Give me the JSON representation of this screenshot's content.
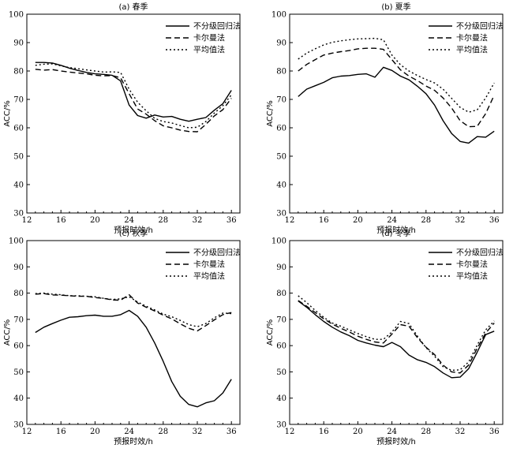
{
  "chart_data": [
    {
      "type": "line",
      "title": "(a) 春季",
      "xlabel": "预报时效/h",
      "ylabel": "ACC/%",
      "xlim": [
        12,
        37
      ],
      "ylim": [
        30,
        100
      ],
      "xticks": [
        12,
        16,
        20,
        24,
        28,
        32,
        36
      ],
      "yticks": [
        30,
        40,
        50,
        60,
        70,
        80,
        90,
        100
      ],
      "legend_position": "top-right",
      "x": [
        13,
        14,
        15,
        16,
        17,
        18,
        19,
        20,
        21,
        22,
        23,
        24,
        25,
        26,
        27,
        28,
        29,
        30,
        31,
        32,
        33,
        34,
        35,
        36
      ],
      "series": [
        {
          "name": "不分级回归法",
          "style": "solid",
          "values": [
            83,
            83,
            82.8,
            82,
            81,
            80.2,
            79.5,
            79,
            78.8,
            78.5,
            76.5,
            68,
            64.3,
            63.4,
            64.5,
            63.8,
            64,
            63,
            62.3,
            63,
            63.6,
            66.2,
            68.5,
            73.2
          ]
        },
        {
          "name": "卡尔曼法",
          "style": "dashed",
          "values": [
            80.6,
            80.3,
            80.5,
            80,
            79.6,
            79.3,
            79,
            78.5,
            78.3,
            78.4,
            77.6,
            72,
            66.6,
            64.8,
            62.5,
            60.7,
            60,
            59.2,
            58.7,
            58.6,
            61.2,
            64.2,
            66.4,
            70.4
          ]
        },
        {
          "name": "平均值法",
          "style": "dotted",
          "values": [
            82,
            82.4,
            82.5,
            81.8,
            81.2,
            80.8,
            80.4,
            80,
            79.6,
            79.7,
            79.5,
            73.6,
            69,
            66,
            63.3,
            62.2,
            61.7,
            60.8,
            60,
            60.2,
            62.2,
            65.2,
            67.8,
            71.6
          ]
        }
      ]
    },
    {
      "type": "line",
      "title": "(b) 夏季",
      "xlabel": "预报时效/h",
      "ylabel": "ACC/%",
      "xlim": [
        12,
        37
      ],
      "ylim": [
        30,
        100
      ],
      "xticks": [
        12,
        16,
        20,
        24,
        28,
        32,
        36
      ],
      "yticks": [
        30,
        40,
        50,
        60,
        70,
        80,
        90,
        100
      ],
      "legend_position": "top-right",
      "x": [
        13,
        14,
        15,
        16,
        17,
        18,
        19,
        20,
        21,
        22,
        23,
        24,
        25,
        26,
        27,
        28,
        29,
        30,
        31,
        32,
        33,
        34,
        35,
        36
      ],
      "series": [
        {
          "name": "不分级回归法",
          "style": "solid",
          "values": [
            71,
            73.6,
            74.8,
            76,
            77.6,
            78.2,
            78.4,
            78.8,
            79,
            77.8,
            81.3,
            80.2,
            78.2,
            76.9,
            74.6,
            72,
            68,
            62.5,
            58,
            55.2,
            54.6,
            56.9,
            56.7,
            58.8
          ]
        },
        {
          "name": "卡尔曼法",
          "style": "dashed",
          "values": [
            80,
            82.3,
            84,
            85.6,
            86.3,
            86.8,
            87.2,
            87.8,
            88,
            88,
            87.6,
            84,
            80.4,
            78.2,
            76.6,
            74.7,
            73.2,
            70.5,
            67,
            62.5,
            60.4,
            60.5,
            65,
            71.5
          ]
        },
        {
          "name": "平均值法",
          "style": "dotted",
          "values": [
            84.2,
            86.3,
            87.8,
            89.2,
            90.1,
            90.6,
            91,
            91.3,
            91.4,
            91.5,
            91,
            85.6,
            82.2,
            80,
            78.4,
            77,
            75.8,
            73.6,
            70.4,
            67.2,
            65.5,
            66.3,
            70.5,
            75.8
          ]
        }
      ]
    },
    {
      "type": "line",
      "title": "(c) 秋季",
      "xlabel": "预报时效/h",
      "ylabel": "ACC/%",
      "xlim": [
        12,
        37
      ],
      "ylim": [
        30,
        100
      ],
      "xticks": [
        12,
        16,
        20,
        24,
        28,
        32,
        36
      ],
      "yticks": [
        30,
        40,
        50,
        60,
        70,
        80,
        90,
        100
      ],
      "legend_position": "top-right",
      "x": [
        13,
        14,
        15,
        16,
        17,
        18,
        19,
        20,
        21,
        22,
        23,
        24,
        25,
        26,
        27,
        28,
        29,
        30,
        31,
        32,
        33,
        34,
        35,
        36
      ],
      "series": [
        {
          "name": "不分级回归法",
          "style": "solid",
          "values": [
            65,
            67,
            68.4,
            69.7,
            70.8,
            71,
            71.4,
            71.6,
            71.2,
            71.2,
            71.8,
            73.4,
            71.2,
            67,
            61,
            54,
            46.3,
            40.7,
            37.6,
            36.7,
            38.2,
            39,
            42,
            47.2
          ]
        },
        {
          "name": "卡尔曼法",
          "style": "dashed",
          "values": [
            79.6,
            79.8,
            79.3,
            79.2,
            79,
            78.8,
            78.8,
            78.3,
            78,
            77.4,
            77.3,
            79.4,
            76.2,
            74.6,
            73.2,
            71.6,
            70.2,
            68.3,
            66.6,
            65.6,
            67.6,
            69.8,
            71.8,
            72.6
          ]
        },
        {
          "name": "平均值法",
          "style": "dotted",
          "values": [
            79.8,
            80,
            79.6,
            79.4,
            79,
            79,
            78.8,
            78.6,
            78,
            77.6,
            77.8,
            78.6,
            76.6,
            75,
            73.6,
            72,
            71,
            69.6,
            68,
            67.2,
            68.4,
            70.6,
            72.4,
            72.2
          ]
        }
      ]
    },
    {
      "type": "line",
      "title": "(d) 冬季",
      "xlabel": "预报时效/h",
      "ylabel": "ACC/%",
      "xlim": [
        12,
        37
      ],
      "ylim": [
        30,
        100
      ],
      "xticks": [
        12,
        16,
        20,
        24,
        28,
        32,
        36
      ],
      "yticks": [
        30,
        40,
        50,
        60,
        70,
        80,
        90,
        100
      ],
      "legend_position": "top-right",
      "x": [
        13,
        14,
        15,
        16,
        17,
        18,
        19,
        20,
        21,
        22,
        23,
        24,
        25,
        26,
        27,
        28,
        29,
        30,
        31,
        32,
        33,
        34,
        35,
        36
      ],
      "series": [
        {
          "name": "不分级回归法",
          "style": "solid",
          "values": [
            77,
            74.6,
            71.8,
            69.2,
            67,
            65.2,
            63.8,
            62,
            61,
            60.2,
            59.6,
            61.2,
            59.6,
            56.4,
            54.6,
            53.6,
            52,
            49.6,
            47.8,
            48,
            51.2,
            57.5,
            64.2,
            65.5
          ]
        },
        {
          "name": "卡尔曼法",
          "style": "dashed",
          "values": [
            77.2,
            75,
            72.6,
            70.2,
            68.2,
            66.6,
            65.2,
            63.6,
            62.4,
            61.4,
            61,
            64.4,
            68,
            67.4,
            63,
            59.4,
            56.6,
            52.6,
            50,
            49.6,
            52.6,
            59,
            64.8,
            68.6
          ]
        },
        {
          "name": "平均值法",
          "style": "dotted",
          "values": [
            79,
            76.4,
            73.4,
            70.8,
            68.6,
            67.4,
            66,
            64.6,
            63.4,
            62.4,
            62.4,
            65.2,
            69.2,
            68.4,
            63.6,
            59.2,
            56,
            52,
            50.6,
            50.8,
            53.8,
            60.2,
            66,
            69.4
          ]
        }
      ]
    }
  ]
}
